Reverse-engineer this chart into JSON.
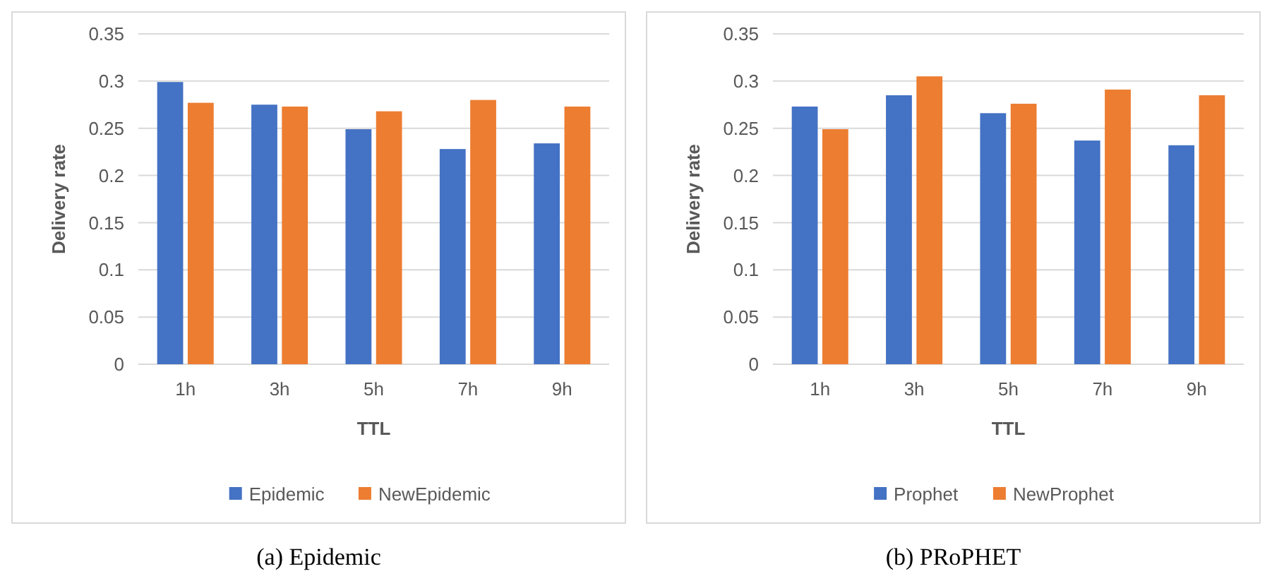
{
  "chart_data": [
    {
      "type": "bar",
      "title": "(a) Epidemic",
      "xlabel": "TTL",
      "ylabel": "Delivery rate",
      "categories": [
        "1h",
        "3h",
        "5h",
        "7h",
        "9h"
      ],
      "series": [
        {
          "name": "Epidemic",
          "color": "#4472c4",
          "values": [
            0.299,
            0.275,
            0.249,
            0.228,
            0.234
          ]
        },
        {
          "name": "NewEpidemic",
          "color": "#ed7d31",
          "values": [
            0.277,
            0.273,
            0.268,
            0.28,
            0.273
          ]
        }
      ],
      "ylim": [
        0,
        0.35
      ],
      "yticks": [
        {
          "value": 0,
          "label": "0"
        },
        {
          "value": 0.05,
          "label": "0.05"
        },
        {
          "value": 0.1,
          "label": "0.1"
        },
        {
          "value": 0.15,
          "label": "0.15"
        },
        {
          "value": 0.2,
          "label": "0.2"
        },
        {
          "value": 0.25,
          "label": "0.25"
        },
        {
          "value": 0.3,
          "label": "0.3"
        },
        {
          "value": 0.35,
          "label": "0.35"
        }
      ],
      "grid": "y",
      "legend": "bottom"
    },
    {
      "type": "bar",
      "title": "(b) PRoPHET",
      "xlabel": "TTL",
      "ylabel": "Delivery rate",
      "categories": [
        "1h",
        "3h",
        "5h",
        "7h",
        "9h"
      ],
      "series": [
        {
          "name": "Prophet",
          "color": "#4472c4",
          "values": [
            0.273,
            0.285,
            0.266,
            0.237,
            0.232
          ]
        },
        {
          "name": "NewProphet",
          "color": "#ed7d31",
          "values": [
            0.249,
            0.305,
            0.276,
            0.291,
            0.285
          ]
        }
      ],
      "ylim": [
        0,
        0.35
      ],
      "yticks": [
        {
          "value": 0,
          "label": "0"
        },
        {
          "value": 0.05,
          "label": "0.05"
        },
        {
          "value": 0.1,
          "label": "0.1"
        },
        {
          "value": 0.15,
          "label": "0.15"
        },
        {
          "value": 0.2,
          "label": "0.2"
        },
        {
          "value": 0.25,
          "label": "0.25"
        },
        {
          "value": 0.3,
          "label": "0.3"
        },
        {
          "value": 0.35,
          "label": "0.35"
        }
      ],
      "grid": "y",
      "legend": "bottom"
    }
  ]
}
